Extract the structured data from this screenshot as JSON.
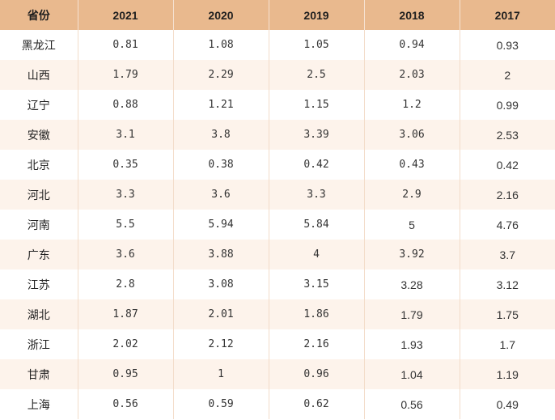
{
  "table": {
    "headers": [
      "省份",
      "2021",
      "2020",
      "2019",
      "2018",
      "2017"
    ],
    "rows": [
      {
        "province": "黑龙江",
        "values": [
          "0.81",
          "1.08",
          "1.05",
          "0.94",
          "0.93"
        ]
      },
      {
        "province": "山西",
        "values": [
          "1.79",
          "2.29",
          "2.5",
          "2.03",
          "2"
        ]
      },
      {
        "province": "辽宁",
        "values": [
          "0.88",
          "1.21",
          "1.15",
          "1.2",
          "0.99"
        ]
      },
      {
        "province": "安徽",
        "values": [
          "3.1",
          "3.8",
          "3.39",
          "3.06",
          "2.53"
        ]
      },
      {
        "province": "北京",
        "values": [
          "0.35",
          "0.38",
          "0.42",
          "0.43",
          "0.42"
        ]
      },
      {
        "province": "河北",
        "values": [
          "3.3",
          "3.6",
          "3.3",
          "2.9",
          "2.16"
        ]
      },
      {
        "province": "河南",
        "values": [
          "5.5",
          "5.94",
          "5.84",
          "5",
          "4.76"
        ]
      },
      {
        "province": "广东",
        "values": [
          "3.6",
          "3.88",
          "4",
          "3.92",
          "3.7"
        ]
      },
      {
        "province": "江苏",
        "values": [
          "2.8",
          "3.08",
          "3.15",
          "3.28",
          "3.12"
        ]
      },
      {
        "province": "湖北",
        "values": [
          "1.87",
          "2.01",
          "1.86",
          "1.79",
          "1.75"
        ]
      },
      {
        "province": "浙江",
        "values": [
          "2.02",
          "2.12",
          "2.16",
          "1.93",
          "1.7"
        ]
      },
      {
        "province": "甘肃",
        "values": [
          "0.95",
          "1",
          "0.96",
          "1.04",
          "1.19"
        ]
      },
      {
        "province": "上海",
        "values": [
          "0.56",
          "0.59",
          "0.62",
          "0.56",
          "0.49"
        ]
      }
    ]
  },
  "colors": {
    "header_bg": "#e9b98e",
    "row_alt_bg": "#fdf3eb",
    "row_bg": "#ffffff",
    "border": "#f3dcc9"
  }
}
